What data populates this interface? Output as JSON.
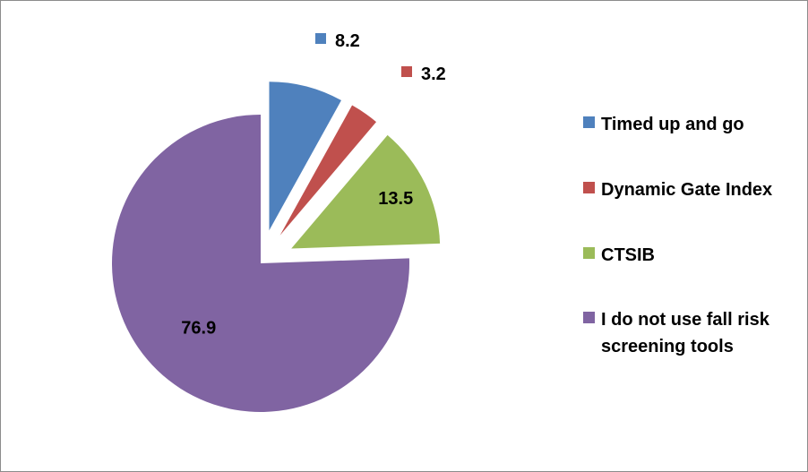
{
  "chart_data": {
    "type": "pie",
    "categories": [
      "Timed up and go",
      "Dynamic Gate Index",
      "CTSIB",
      "I do not use fall risk screening tools"
    ],
    "values": [
      8.2,
      3.2,
      13.5,
      76.9
    ],
    "colors": [
      "#4f81bd",
      "#c0504d",
      "#9bbb59",
      "#8064a2"
    ],
    "data_labels": [
      "8.2",
      "3.2",
      "13.5",
      "76.9"
    ],
    "exploded": true,
    "legend_position": "right",
    "title": ""
  }
}
